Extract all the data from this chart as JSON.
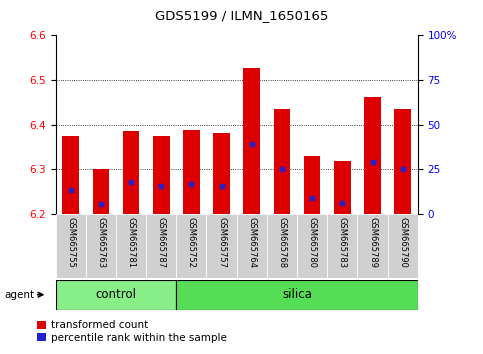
{
  "title": "GDS5199 / ILMN_1650165",
  "samples": [
    "GSM665755",
    "GSM665763",
    "GSM665781",
    "GSM665787",
    "GSM665752",
    "GSM665757",
    "GSM665764",
    "GSM665768",
    "GSM665780",
    "GSM665783",
    "GSM665789",
    "GSM665790"
  ],
  "groups": [
    "control",
    "control",
    "control",
    "control",
    "silica",
    "silica",
    "silica",
    "silica",
    "silica",
    "silica",
    "silica",
    "silica"
  ],
  "bar_tops": [
    6.375,
    6.3,
    6.385,
    6.374,
    6.388,
    6.382,
    6.527,
    6.436,
    6.33,
    6.32,
    6.462,
    6.436
  ],
  "blue_positions": [
    6.255,
    6.222,
    6.272,
    6.263,
    6.267,
    6.262,
    6.358,
    6.302,
    6.237,
    6.225,
    6.316,
    6.302
  ],
  "ymin": 6.2,
  "ymax": 6.6,
  "y_ticks": [
    6.2,
    6.3,
    6.4,
    6.5,
    6.6
  ],
  "right_ticks": [
    0,
    25,
    50,
    75,
    100
  ],
  "right_tick_labels": [
    "0",
    "25",
    "50",
    "75",
    "100%"
  ],
  "bar_color": "#dd0000",
  "blue_color": "#2222cc",
  "bar_width": 0.55,
  "control_color": "#88ee88",
  "silica_color": "#55dd55",
  "agent_label": "agent",
  "control_label": "control",
  "silica_label": "silica",
  "n_control": 4,
  "n_silica": 8
}
